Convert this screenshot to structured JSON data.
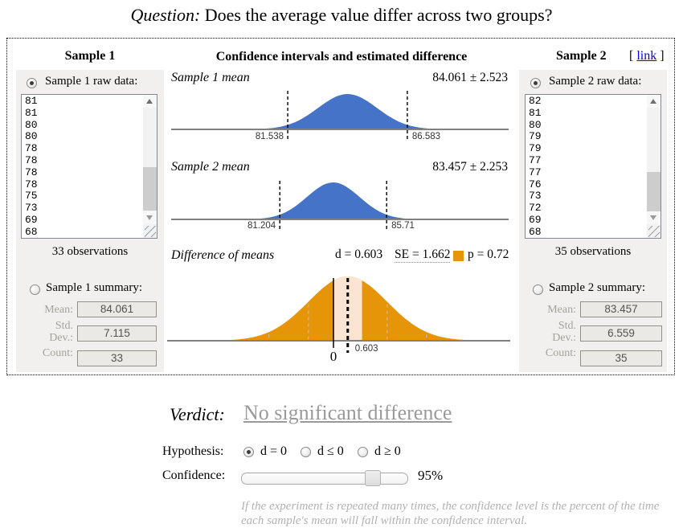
{
  "question": {
    "prefix": "Question:",
    "text": "Does the average value differ across two groups?"
  },
  "frame": {
    "center_header": "Confidence intervals and estimated difference",
    "link": {
      "open": "[",
      "label": "link",
      "close": "]"
    }
  },
  "sample1": {
    "header": "Sample 1",
    "raw_label": "Sample 1 raw data:",
    "raw_data": [
      "81",
      "81",
      "80",
      "80",
      "78",
      "78",
      "78",
      "78",
      "75",
      "73",
      "69",
      "68"
    ],
    "observations": "33 observations",
    "summary_label": "Sample 1 summary:",
    "mean_label": "Mean:",
    "mean": "84.061",
    "std_label_1": "Std.",
    "std_label_2": "Dev.:",
    "std": "7.115",
    "count_label": "Count:",
    "count": "33"
  },
  "sample2": {
    "header": "Sample 2",
    "raw_label": "Sample 2 raw data:",
    "raw_data": [
      "82",
      "81",
      "80",
      "79",
      "79",
      "77",
      "77",
      "76",
      "73",
      "72",
      "69",
      "68"
    ],
    "observations": "35 observations",
    "summary_label": "Sample 2 summary:",
    "mean_label": "Mean:",
    "mean": "83.457",
    "std_label_1": "Std.",
    "std_label_2": "Dev.:",
    "std": "6.559",
    "count_label": "Count:",
    "count": "35"
  },
  "chart_data": [
    {
      "type": "area",
      "title": "Sample 1 mean",
      "estimate_label": "84.061 ± 2.523",
      "mean": 84.061,
      "moe": 2.523,
      "ci": [
        81.538,
        86.583
      ],
      "ci_labels": [
        "81.538",
        "86.583"
      ],
      "curve_color": "#4573c8"
    },
    {
      "type": "area",
      "title": "Sample 2 mean",
      "estimate_label": "83.457 ± 2.253",
      "mean": 83.457,
      "moe": 2.253,
      "ci": [
        81.204,
        85.71
      ],
      "ci_labels": [
        "81.204",
        "85.71"
      ],
      "curve_color": "#4573c8"
    },
    {
      "type": "area",
      "title": "Difference of means",
      "d": 0.603,
      "se": 1.662,
      "p": 0.72,
      "stats": {
        "d_label": "d = 0.603",
        "se_label": "SE = 1.662",
        "p_label": "p = 0.72"
      },
      "axis_labels": {
        "zero": "0",
        "d": "0.603"
      },
      "curve_color": "#e69408",
      "highlight_color": "#fce4d3"
    }
  ],
  "verdict": {
    "label": "Verdict:",
    "text": "No significant difference"
  },
  "hypothesis": {
    "label": "Hypothesis:",
    "options": [
      {
        "label": "d = 0",
        "selected": true
      },
      {
        "label": "d ≤ 0",
        "selected": false
      },
      {
        "label": "d ≥ 0",
        "selected": false
      }
    ]
  },
  "confidence": {
    "label": "Confidence:",
    "value": "95%",
    "percent": 95
  },
  "footnote": {
    "line1": "If the experiment is repeated many times, the confidence level is the percent of the time",
    "line2": "each sample's mean will fall within the confidence interval."
  }
}
